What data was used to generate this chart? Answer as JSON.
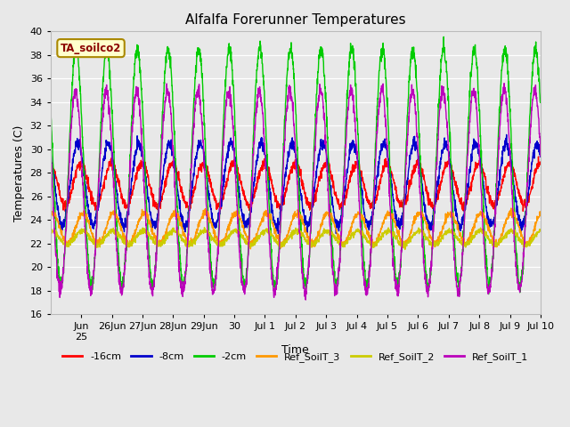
{
  "title": "Alfalfa Forerunner Temperatures",
  "ylabel": "Temperatures (C)",
  "xlabel": "Time",
  "annotation": "TA_soilco2",
  "ylim": [
    16,
    40
  ],
  "background_color": "#e8e8e8",
  "plot_bg_color": "#e8e8e8",
  "grid_color": "#ffffff",
  "series": {
    "-16cm": {
      "color": "#ff0000"
    },
    "-8cm": {
      "color": "#0000cc"
    },
    "-2cm": {
      "color": "#00cc00"
    },
    "Ref_SoilT_3": {
      "color": "#ff9900"
    },
    "Ref_SoilT_2": {
      "color": "#cccc00"
    },
    "Ref_SoilT_1": {
      "color": "#bb00bb"
    }
  },
  "xtick_labels": [
    "Jun\n25",
    "26Jun",
    "27Jun",
    "28Jun",
    "29Jun",
    "30",
    "Jul 1",
    "Jul 2",
    "Jul 3",
    "Jul 4",
    "Jul 5",
    "Jul 6",
    "Jul 7",
    "Jul 8",
    "Jul 9",
    "Jul 10"
  ],
  "num_days": 16,
  "points_per_day": 144,
  "figsize": [
    6.4,
    4.8
  ],
  "dpi": 100
}
